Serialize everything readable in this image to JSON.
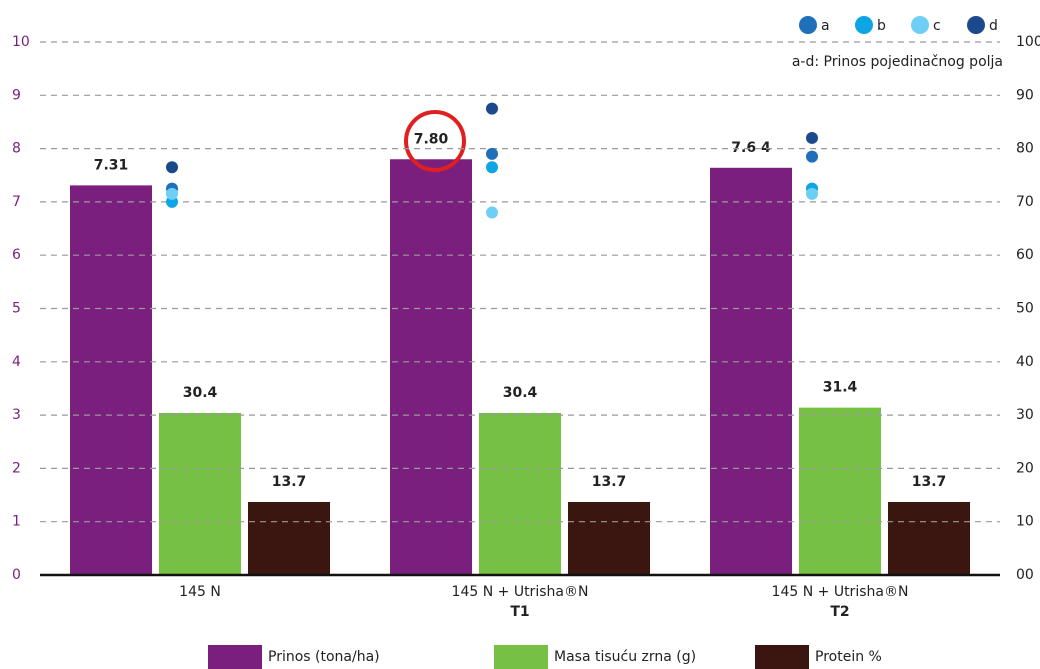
{
  "chart_data": {
    "type": "bar",
    "categories": [
      "145 N",
      "145 N + Utrisha®N",
      "145 N + Utrisha®N"
    ],
    "category_sublabels": [
      null,
      "T1",
      "T2"
    ],
    "ylim": [
      0,
      10
    ],
    "yticks": [
      0,
      1,
      2,
      3,
      4,
      5,
      6,
      7,
      8,
      9,
      10
    ],
    "y2lim": [
      0,
      100
    ],
    "y2ticks": [
      {
        "value": 0,
        "label": "00"
      },
      10,
      20,
      30,
      40,
      50,
      60,
      70,
      80,
      90,
      100
    ],
    "grid": true,
    "legend": "bottom",
    "series": [
      {
        "name": "Prinos (tona/ha)",
        "color": "#7b1f7e",
        "axis": "y",
        "values": [
          7.31,
          7.8,
          7.64
        ],
        "value_labels": [
          "7.31",
          "7.80",
          "7.6 4"
        ]
      },
      {
        "name": "Masa tisuću zrna (g)",
        "color": "#76c043",
        "axis": "y2",
        "values": [
          30.4,
          30.4,
          31.4
        ]
      },
      {
        "name": "Protein %",
        "color": "#3b1510",
        "axis": "y2",
        "values": [
          13.7,
          13.7,
          13.7
        ]
      }
    ],
    "field_points": {
      "note": "a-d: Prinos pojedinačnog polja",
      "series": [
        {
          "name": "a",
          "color": "#1f6fba",
          "values": [
            7.25,
            7.9,
            7.85
          ]
        },
        {
          "name": "b",
          "color": "#0ea5e4",
          "values": [
            7.0,
            7.65,
            7.25
          ]
        },
        {
          "name": "c",
          "color": "#6dcff6",
          "values": [
            7.15,
            6.8,
            7.15
          ]
        },
        {
          "name": "d",
          "color": "#1b4a8c",
          "values": [
            7.65,
            8.75,
            8.2
          ]
        }
      ]
    }
  }
}
